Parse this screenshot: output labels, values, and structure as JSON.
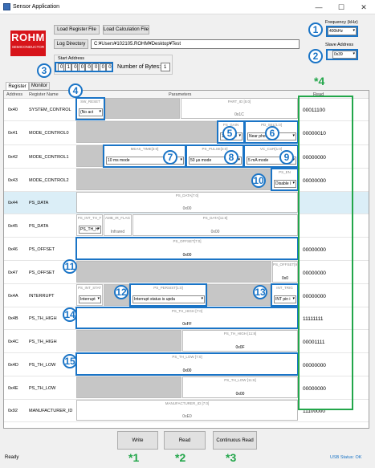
{
  "window": {
    "title": "Sensor Application",
    "min": "—",
    "max": "☐",
    "close": "✕"
  },
  "logo": {
    "line1": "ROHM",
    "line2": "SEMICONDUCTOR"
  },
  "toolbar": {
    "load_register": "Load Register File",
    "load_calc": "Load Calculation File",
    "log_directory": "Log Directory",
    "path": "C:¥Users¥102105.ROHM¥Desktop¥Test"
  },
  "frequency": {
    "label": "Frequency (kHz)",
    "value": "400kHz"
  },
  "slave": {
    "label": "Slave Address",
    "value": "0x39"
  },
  "start_address": {
    "label": "Start Address",
    "bits": [
      "0",
      "1",
      "0",
      "0",
      "0",
      "0",
      "0",
      "0"
    ]
  },
  "num_bytes": {
    "label": "Number of Bytes:",
    "value": "1"
  },
  "tabs": [
    "Register",
    "Monitor"
  ],
  "grid_headers": {
    "address": "Address",
    "name": "Register Name",
    "params": "Parameters",
    "read": "Read"
  },
  "rows": [
    {
      "addr": "0x40",
      "name": "SYSTEM_CONTROL",
      "read": "00011100"
    },
    {
      "addr": "0x41",
      "name": "MODE_CONTROL0",
      "read": "00000010"
    },
    {
      "addr": "0x42",
      "name": "MODE_CONTROL1",
      "read": "00000000"
    },
    {
      "addr": "0x43",
      "name": "MODE_CONTROL2",
      "read": "00000000"
    },
    {
      "addr": "0x44",
      "name": "PS_DATA",
      "read": ""
    },
    {
      "addr": "0x45",
      "name": "PS_DATA",
      "read": ""
    },
    {
      "addr": "0x46",
      "name": "PS_OFFSET",
      "read": "00000000"
    },
    {
      "addr": "0x47",
      "name": "PS_OFFSET",
      "read": "00000000"
    },
    {
      "addr": "0x4A",
      "name": "INTERRUPT",
      "read": "00000000"
    },
    {
      "addr": "0x4B",
      "name": "PS_TH_HIGH",
      "read": "11111111"
    },
    {
      "addr": "0x4C",
      "name": "PS_TH_HIGH",
      "read": "00001111"
    },
    {
      "addr": "0x4D",
      "name": "PS_TH_LOW",
      "read": "00000000"
    },
    {
      "addr": "0x4E",
      "name": "PS_TH_LOW",
      "read": "00000000"
    },
    {
      "addr": "0x92",
      "name": "MANUFACTURER_ID",
      "read": "11100000"
    }
  ],
  "fields": {
    "sw_reset": {
      "title": "SW_RESET",
      "value": "(No act"
    },
    "part_id": {
      "title": "PART_ID [5:0]",
      "value": "0x1C"
    },
    "ps_gain": {
      "title": "PS_GAIN",
      "value": "1x mode"
    },
    "pd_sel": {
      "title": "PD_SEL[1:0]",
      "value": "Near photodiode"
    },
    "meas_time": {
      "title": "MEAS_TIME[3:0]",
      "value": "10 ms mode"
    },
    "ps_pulse": {
      "title": "PS_PULSE[3:0]",
      "value": "50 µs mode"
    },
    "vc_cur": {
      "title": "VC_CUR[1:0]",
      "value": "5 mA mode"
    },
    "ps_en": {
      "title": "PS_EN",
      "value": "Disable I"
    },
    "ps_data_l": {
      "title": "PS_DATA[7:0]",
      "value": "0x00"
    },
    "ps_int_th": {
      "title": "PS_INT_TH_F",
      "value": "PS_TH_H"
    },
    "amb_ir": {
      "title": "AMB_IR_FLAG",
      "value": "Infrared"
    },
    "ps_data_h": {
      "title": "PS_DATA[11:8]",
      "value": "0x00"
    },
    "ps_offset_l": {
      "title": "PS_OFFSET[7:0]",
      "value": "0x00"
    },
    "ps_offset_h": {
      "title": "PS_OFFSET[9:8]",
      "value": "0x0"
    },
    "ps_int_stat": {
      "title": "PS_INT_STAT",
      "value": "Interrupt"
    },
    "ps_persist": {
      "title": "PS_PERSIST[1:0]",
      "value": "Interrupt status is upda"
    },
    "int_trig": {
      "title": "INT_TRIG",
      "value": "INT pin i"
    },
    "th_high_l": {
      "title": "PS_TH_HIGH [7:0]",
      "value": "0xFF"
    },
    "th_high_h": {
      "title": "PS_TH_HIGH [11:8]",
      "value": "0x0F"
    },
    "th_low_l": {
      "title": "PS_TH_LOW [7:0]",
      "value": "0x00"
    },
    "th_low_h": {
      "title": "PS_TH_LOW [11:8]",
      "value": "0x00"
    },
    "manufacturer": {
      "title": "MANUFACTURER_ID [7:0]",
      "value": "0xE0"
    }
  },
  "buttons": {
    "write": "Write",
    "read": "Read",
    "continuous": "Continuous Read"
  },
  "callouts": [
    "1",
    "2",
    "3",
    "4",
    "5",
    "6",
    "7",
    "8",
    "9",
    "10",
    "11",
    "12",
    "13",
    "14",
    "15"
  ],
  "green_marks": [
    "*1",
    "*2",
    "*3",
    "*4"
  ],
  "status": {
    "left": "Ready",
    "right": "USB Status: OK"
  },
  "colors": {
    "callout": "#1a74c6",
    "green": "#22a64a",
    "logo": "#d7141a"
  }
}
